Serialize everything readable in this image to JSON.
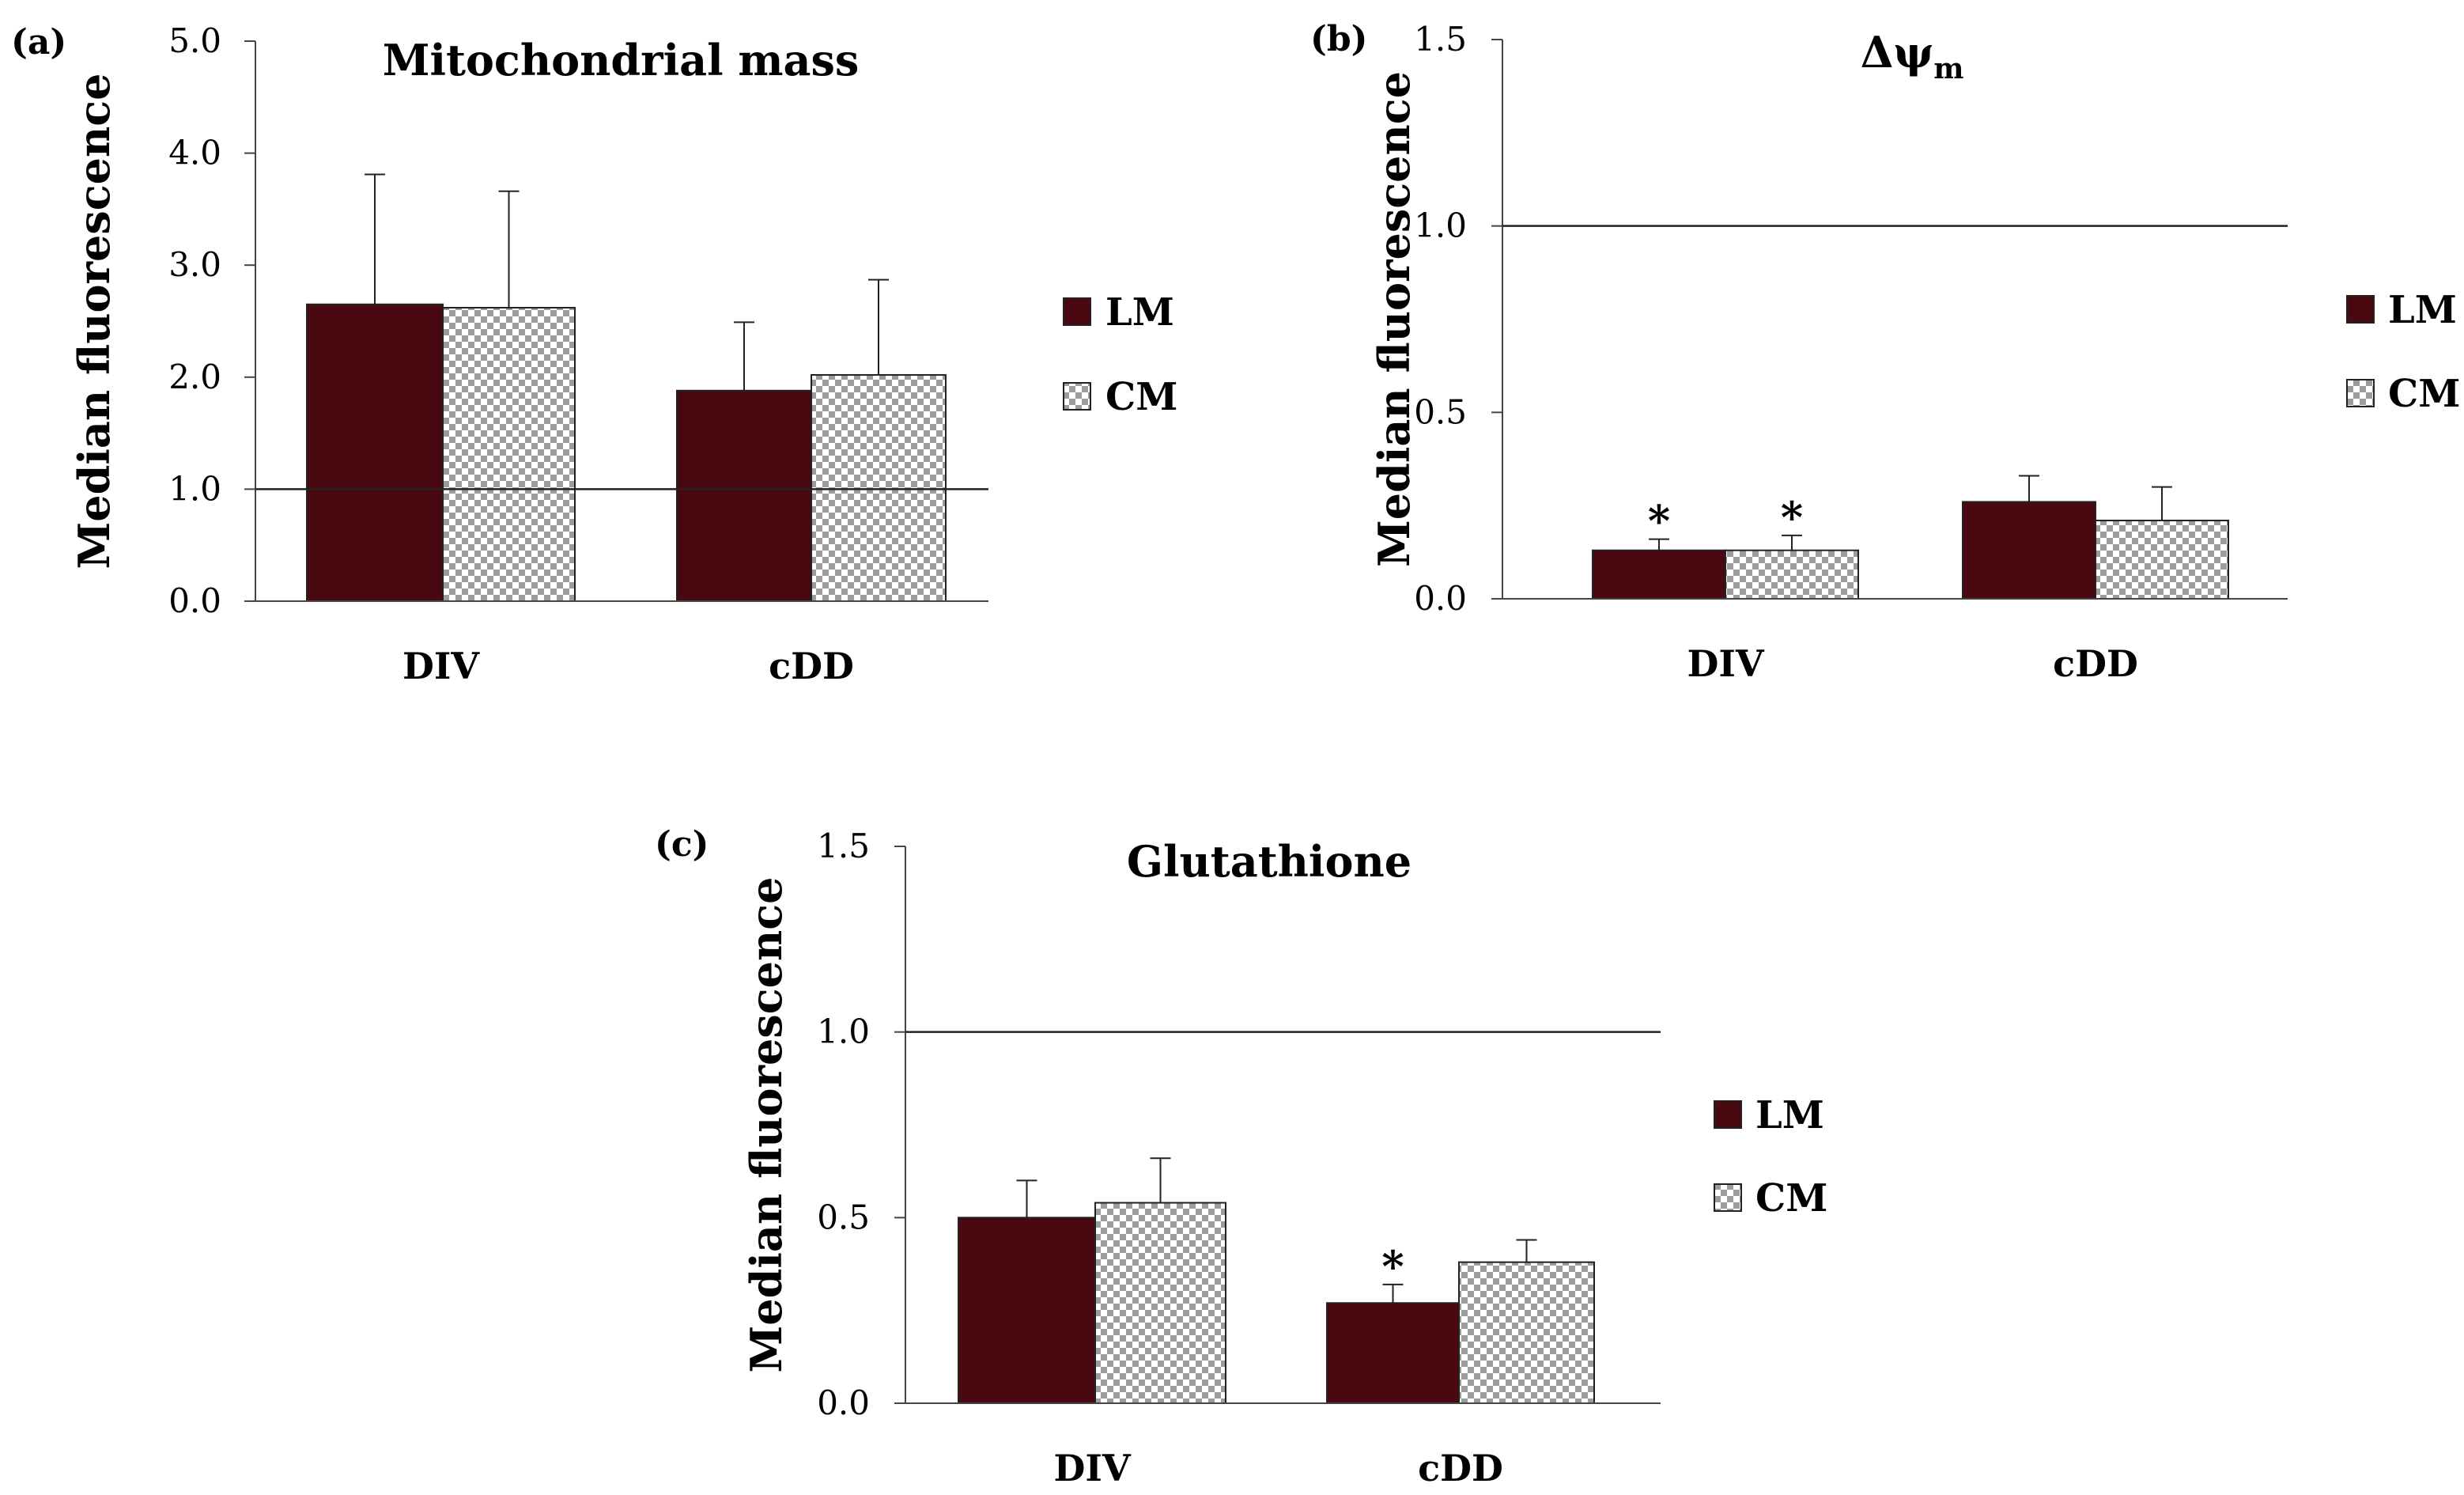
{
  "colors": {
    "lm": "#4a0810",
    "cm_light": "#ffffff",
    "cm_dark": "#9c9c9c",
    "axis": "#444444",
    "reference": "#222222"
  },
  "chart_data": [
    {
      "panel": "(a)",
      "type": "bar",
      "title": "Mitochondrial mass",
      "title_sub": "",
      "xlabel": "",
      "ylabel": "Median fluorescence",
      "ylim": [
        0,
        5
      ],
      "yticks": [
        "0.0",
        "1.0",
        "2.0",
        "3.0",
        "4.0",
        "5.0"
      ],
      "ytick_values": [
        0,
        1,
        2,
        3,
        4,
        5
      ],
      "reference_line": 1.0,
      "categories": [
        "DIV",
        "cDD"
      ],
      "legend": [
        "LM",
        "CM"
      ],
      "series": [
        {
          "name": "LM",
          "values": [
            2.65,
            1.88
          ],
          "errors": [
            1.16,
            0.61
          ],
          "significant": [
            false,
            false
          ]
        },
        {
          "name": "CM",
          "values": [
            2.62,
            2.02
          ],
          "errors": [
            1.04,
            0.85
          ],
          "significant": [
            false,
            false
          ]
        }
      ]
    },
    {
      "panel": "(b)",
      "type": "bar",
      "title": "Δψ",
      "title_sub": "m",
      "xlabel": "",
      "ylabel": "Median fluorescence",
      "ylim": [
        0,
        1.5
      ],
      "yticks": [
        "0.0",
        "0.5",
        "1.0",
        "1.5"
      ],
      "ytick_values": [
        0,
        0.5,
        1.0,
        1.5
      ],
      "reference_line": 1.0,
      "categories": [
        "DIV",
        "cDD"
      ],
      "legend": [
        "LM",
        "CM"
      ],
      "series": [
        {
          "name": "LM",
          "values": [
            0.13,
            0.26
          ],
          "errors": [
            0.03,
            0.07
          ],
          "significant": [
            true,
            false
          ]
        },
        {
          "name": "CM",
          "values": [
            0.13,
            0.21
          ],
          "errors": [
            0.04,
            0.09
          ],
          "significant": [
            true,
            false
          ]
        }
      ]
    },
    {
      "panel": "(c)",
      "type": "bar",
      "title": "Glutathione",
      "title_sub": "",
      "xlabel": "",
      "ylabel": "Median fluorescence",
      "ylim": [
        0,
        1.5
      ],
      "yticks": [
        "0.0",
        "0.5",
        "1.0",
        "1.5"
      ],
      "ytick_values": [
        0,
        0.5,
        1.0,
        1.5
      ],
      "reference_line": 1.0,
      "categories": [
        "DIV",
        "cDD"
      ],
      "legend": [
        "LM",
        "CM"
      ],
      "series": [
        {
          "name": "LM",
          "values": [
            0.5,
            0.27
          ],
          "errors": [
            0.1,
            0.05
          ],
          "significant": [
            false,
            true
          ]
        },
        {
          "name": "CM",
          "values": [
            0.54,
            0.38
          ],
          "errors": [
            0.12,
            0.06
          ],
          "significant": [
            false,
            false
          ]
        }
      ]
    }
  ],
  "significance_marker": "*"
}
